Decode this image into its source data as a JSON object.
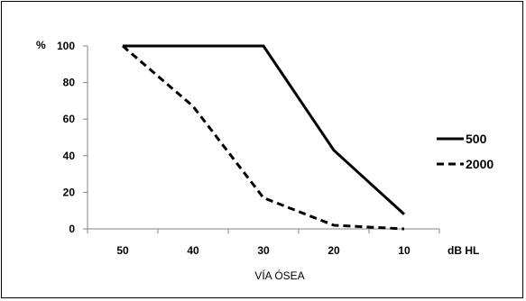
{
  "chart_data": {
    "type": "line",
    "x": [
      50,
      40,
      30,
      20,
      10
    ],
    "x_ticks": [
      "50",
      "40",
      "30",
      "20",
      "10"
    ],
    "xlim": [
      55,
      5
    ],
    "x_reversed": true,
    "y_ticks": [
      "0",
      "20",
      "40",
      "60",
      "80",
      "100"
    ],
    "ylim": [
      0,
      100
    ],
    "y_unit_label": "%",
    "x_unit_label": "dB HL",
    "xlabel": "VÍA ÓSEA",
    "grid": false,
    "legend_position": "right",
    "series": [
      {
        "name": "500",
        "line_style": "solid",
        "color": "#000000",
        "values": [
          100,
          100,
          100,
          43,
          8
        ]
      },
      {
        "name": "2000",
        "line_style": "dashed",
        "color": "#000000",
        "values": [
          100,
          67,
          17,
          2,
          0
        ]
      }
    ]
  }
}
